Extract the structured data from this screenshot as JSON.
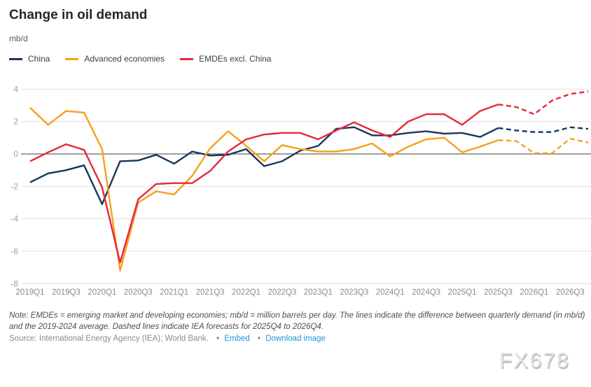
{
  "title": "Change in oil demand",
  "unit_label": "mb/d",
  "legend": [
    {
      "label": "China",
      "color": "#17375c"
    },
    {
      "label": "Advanced economies",
      "color": "#f6a11c"
    },
    {
      "label": "EMDEs excl. China",
      "color": "#e5283b"
    }
  ],
  "chart_data": {
    "type": "line",
    "x": [
      "2019Q1",
      "2019Q2",
      "2019Q3",
      "2019Q4",
      "2020Q1",
      "2020Q2",
      "2020Q3",
      "2020Q4",
      "2021Q1",
      "2021Q2",
      "2021Q3",
      "2021Q4",
      "2022Q1",
      "2022Q2",
      "2022Q3",
      "2022Q4",
      "2023Q1",
      "2023Q2",
      "2023Q3",
      "2023Q4",
      "2024Q1",
      "2024Q2",
      "2024Q3",
      "2024Q4",
      "2025Q1",
      "2025Q2",
      "2025Q3",
      "2025Q4",
      "2026Q1",
      "2026Q2",
      "2026Q3",
      "2026Q4"
    ],
    "x_tick_labels": [
      "2019Q1",
      "2019Q3",
      "2020Q1",
      "2020Q3",
      "2021Q1",
      "2021Q3",
      "2022Q1",
      "2022Q3",
      "2023Q1",
      "2023Q3",
      "2024Q1",
      "2024Q3",
      "2025Q1",
      "2025Q3",
      "2026Q1",
      "2026Q3"
    ],
    "y_ticks": [
      4,
      2,
      0,
      -2,
      -4,
      -6,
      -8
    ],
    "ylim": [
      -8,
      4
    ],
    "grid": true,
    "legend_position": "top",
    "forecast_from": "2025Q4",
    "solid_until_index": 26,
    "series": [
      {
        "name": "China",
        "color": "#17375c",
        "values": [
          -1.75,
          -1.2,
          -1.0,
          -0.7,
          -3.1,
          -0.45,
          -0.4,
          -0.05,
          -0.6,
          0.15,
          -0.1,
          -0.05,
          0.3,
          -0.75,
          -0.45,
          0.2,
          0.5,
          1.55,
          1.65,
          1.15,
          1.15,
          1.3,
          1.4,
          1.25,
          1.3,
          1.05,
          1.6,
          1.45,
          1.35,
          1.35,
          1.65,
          1.55
        ]
      },
      {
        "name": "Advanced economies",
        "color": "#f6a11c",
        "values": [
          2.85,
          1.8,
          2.65,
          2.55,
          0.3,
          -7.2,
          -3.0,
          -2.3,
          -2.5,
          -1.35,
          0.35,
          1.4,
          0.5,
          -0.45,
          0.55,
          0.3,
          0.15,
          0.15,
          0.3,
          0.65,
          -0.15,
          0.45,
          0.9,
          1.0,
          0.1,
          0.45,
          0.85,
          0.8,
          0.05,
          0.05,
          0.95,
          0.7
        ]
      },
      {
        "name": "EMDEs excl. China",
        "color": "#e5283b",
        "values": [
          -0.45,
          0.1,
          0.6,
          0.25,
          -2.05,
          -6.7,
          -2.8,
          -1.85,
          -1.8,
          -1.8,
          -1.05,
          0.15,
          0.9,
          1.2,
          1.3,
          1.3,
          0.9,
          1.45,
          1.95,
          1.45,
          1.05,
          2.0,
          2.45,
          2.45,
          1.8,
          2.65,
          3.05,
          2.9,
          2.45,
          3.3,
          3.7,
          3.85
        ]
      }
    ],
    "title": "Change in oil demand",
    "ylabel": "mb/d",
    "xlabel": ""
  },
  "note": {
    "text": "Note: EMDEs = emerging market and developing economies; mb/d = million barrels per day. The lines indicate the difference between quarterly demand (in mb/d) and the 2019-2024 average. Dashed lines indicate IEA forecasts for 2025Q4 to 2026Q4."
  },
  "source": {
    "text": "Source: International Energy Agency (IEA); World Bank.",
    "bullet": "•",
    "embed_label": "Embed",
    "download_label": "Download image"
  },
  "watermark": "FX678"
}
